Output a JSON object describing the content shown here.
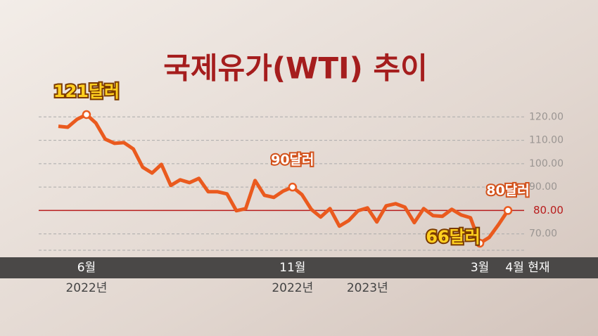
{
  "chart_data": {
    "type": "line",
    "title": "국제유가(WTI) 추이",
    "categories": [
      null,
      null,
      null,
      "6월",
      null,
      null,
      null,
      null,
      null,
      null,
      null,
      null,
      null,
      null,
      null,
      null,
      null,
      null,
      null,
      null,
      null,
      null,
      null,
      null,
      null,
      "11월",
      null,
      null,
      null,
      null,
      null,
      null,
      null,
      null,
      null,
      null,
      null,
      null,
      null,
      null,
      null,
      null,
      null,
      null,
      null,
      "3월",
      null,
      null,
      "4월 현재"
    ],
    "sublabels": [
      null,
      null,
      null,
      "2022년",
      null,
      null,
      null,
      null,
      null,
      null,
      null,
      null,
      null,
      null,
      null,
      null,
      null,
      null,
      null,
      null,
      null,
      null,
      null,
      null,
      null,
      "2022년",
      null,
      null,
      null,
      null,
      null,
      null,
      null,
      "2023년",
      null,
      null,
      null,
      null,
      null,
      null,
      null,
      null,
      null,
      null,
      null,
      null,
      null,
      null,
      null
    ],
    "values": [
      116,
      115.6,
      119,
      121,
      117.4,
      110.5,
      108.7,
      109,
      106.3,
      98.5,
      96,
      99.7,
      90.7,
      93.1,
      91.9,
      93.7,
      88,
      88,
      87.1,
      79.9,
      80.8,
      92.8,
      86.5,
      85.6,
      88.3,
      90,
      86.8,
      80.5,
      77.2,
      80.8,
      73.3,
      75.7,
      79.9,
      81.1,
      75.1,
      82,
      82.9,
      81.4,
      74.8,
      80.8,
      77.8,
      77.5,
      80.5,
      78.1,
      76.9,
      66,
      68.5,
      74,
      80
    ],
    "value_labels": [
      null,
      null,
      null,
      "121달러",
      null,
      null,
      null,
      null,
      null,
      null,
      null,
      null,
      null,
      null,
      null,
      null,
      null,
      null,
      null,
      null,
      null,
      null,
      null,
      null,
      null,
      "90달러",
      null,
      null,
      null,
      null,
      null,
      null,
      null,
      null,
      null,
      null,
      null,
      null,
      null,
      null,
      null,
      null,
      null,
      null,
      null,
      "66달러",
      null,
      null,
      "80달러"
    ],
    "color": "#ea5a1e",
    "ylim": [
      63,
      124
    ],
    "yticks": [
      {
        "value": 70,
        "label": "70.00"
      },
      {
        "value": 90,
        "label": "90.00"
      },
      {
        "value": 100,
        "label": "100.00"
      },
      {
        "value": 110,
        "label": "110.00"
      },
      {
        "value": 120,
        "label": "120.00"
      }
    ],
    "reference_line": {
      "value": 80,
      "label": "80.00",
      "color": "#b81c1c"
    },
    "grid": true
  }
}
